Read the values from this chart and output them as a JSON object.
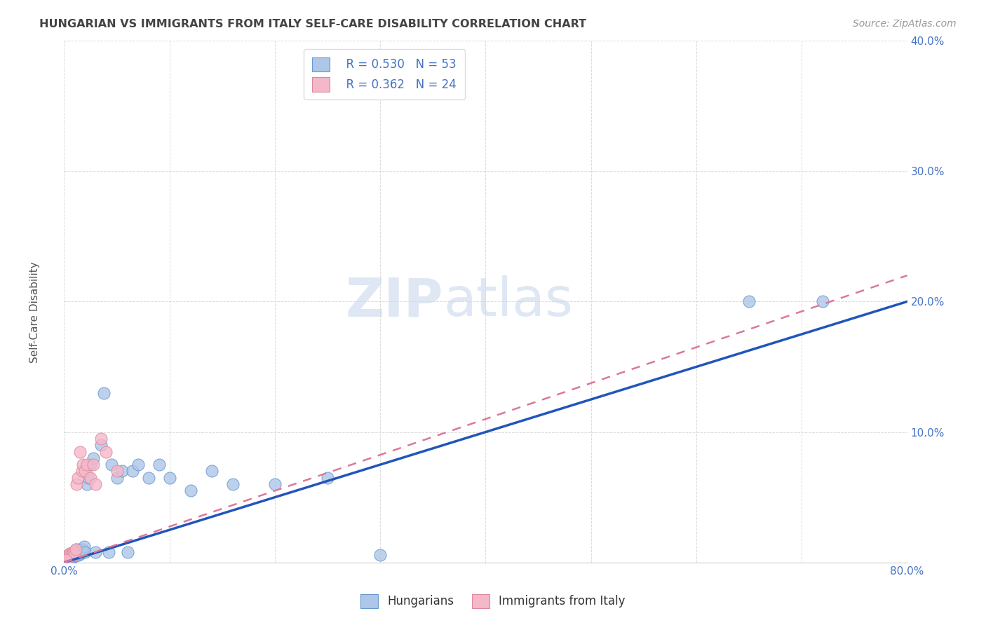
{
  "title": "HUNGARIAN VS IMMIGRANTS FROM ITALY SELF-CARE DISABILITY CORRELATION CHART",
  "source": "Source: ZipAtlas.com",
  "ylabel": "Self-Care Disability",
  "xlim": [
    0.0,
    0.8
  ],
  "ylim": [
    0.0,
    0.4
  ],
  "xticks": [
    0.0,
    0.1,
    0.2,
    0.3,
    0.4,
    0.5,
    0.6,
    0.7,
    0.8
  ],
  "yticks": [
    0.0,
    0.1,
    0.2,
    0.3,
    0.4
  ],
  "xtick_labels": [
    "0.0%",
    "",
    "",
    "",
    "",
    "",
    "",
    "",
    "80.0%"
  ],
  "ytick_labels_right": [
    "",
    "10.0%",
    "20.0%",
    "30.0%",
    "40.0%"
  ],
  "background_color": "#ffffff",
  "grid_color": "#cccccc",
  "title_color": "#444444",
  "axis_color": "#4472c4",
  "watermark": "ZIPatlas",
  "blue_scatter_color": "#aec6e8",
  "pink_scatter_color": "#f5b8cb",
  "blue_edge_color": "#6699cc",
  "pink_edge_color": "#dd8899",
  "line_blue": "#2255bb",
  "line_pink": "#dd7799",
  "hungarian_x": [
    0.002,
    0.003,
    0.004,
    0.004,
    0.005,
    0.005,
    0.006,
    0.006,
    0.007,
    0.007,
    0.008,
    0.008,
    0.009,
    0.009,
    0.01,
    0.01,
    0.011,
    0.012,
    0.012,
    0.013,
    0.014,
    0.015,
    0.015,
    0.016,
    0.017,
    0.018,
    0.019,
    0.02,
    0.022,
    0.023,
    0.025,
    0.028,
    0.03,
    0.035,
    0.038,
    0.042,
    0.045,
    0.05,
    0.055,
    0.06,
    0.065,
    0.07,
    0.08,
    0.09,
    0.1,
    0.12,
    0.14,
    0.16,
    0.2,
    0.25,
    0.3,
    0.65,
    0.72
  ],
  "hungarian_y": [
    0.003,
    0.005,
    0.002,
    0.004,
    0.003,
    0.006,
    0.004,
    0.007,
    0.003,
    0.005,
    0.004,
    0.006,
    0.005,
    0.008,
    0.006,
    0.007,
    0.005,
    0.008,
    0.01,
    0.007,
    0.006,
    0.009,
    0.01,
    0.007,
    0.008,
    0.01,
    0.012,
    0.008,
    0.06,
    0.065,
    0.075,
    0.08,
    0.008,
    0.09,
    0.13,
    0.008,
    0.075,
    0.065,
    0.07,
    0.008,
    0.07,
    0.075,
    0.065,
    0.075,
    0.065,
    0.055,
    0.07,
    0.06,
    0.06,
    0.065,
    0.006,
    0.2,
    0.2
  ],
  "italy_x": [
    0.002,
    0.003,
    0.004,
    0.005,
    0.006,
    0.007,
    0.008,
    0.009,
    0.01,
    0.011,
    0.012,
    0.013,
    0.015,
    0.017,
    0.018,
    0.02,
    0.022,
    0.025,
    0.028,
    0.03,
    0.035,
    0.04,
    0.05,
    0.002
  ],
  "italy_y": [
    0.003,
    0.005,
    0.004,
    0.007,
    0.006,
    0.005,
    0.007,
    0.008,
    0.006,
    0.01,
    0.06,
    0.065,
    0.085,
    0.07,
    0.075,
    0.07,
    0.075,
    0.065,
    0.075,
    0.06,
    0.095,
    0.085,
    0.07,
    0.002
  ],
  "blue_line_x0": 0.0,
  "blue_line_y0": 0.0,
  "blue_line_x1": 0.8,
  "blue_line_y1": 0.2,
  "pink_line_x0": 0.0,
  "pink_line_y0": 0.0,
  "pink_line_x1": 0.8,
  "pink_line_y1": 0.22
}
